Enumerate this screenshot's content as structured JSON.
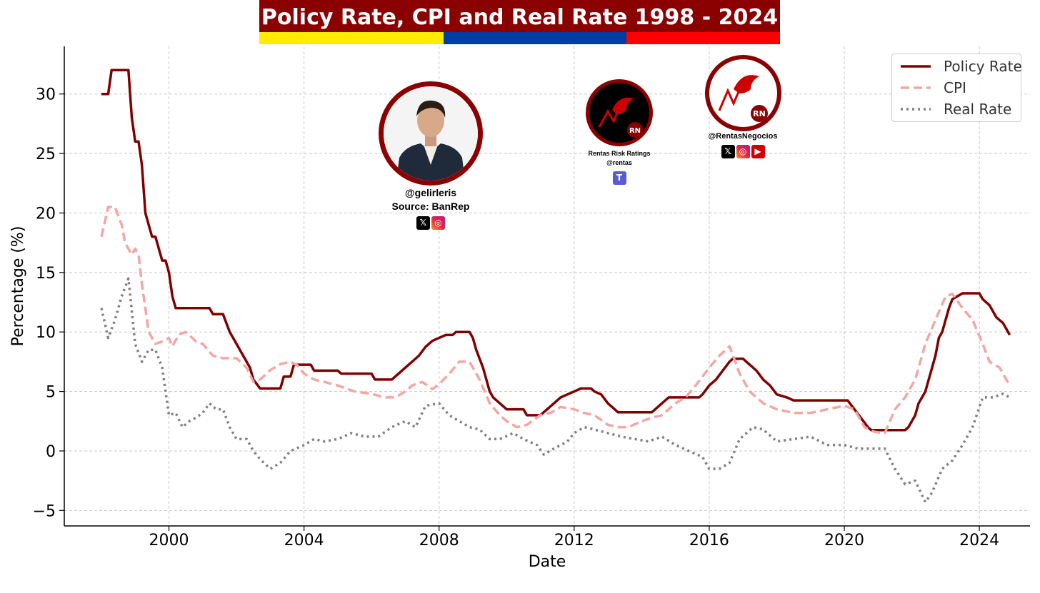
{
  "banner": {
    "title": "Policy Rate, CPI and Real Rate 1998 - 2024",
    "colors": {
      "title_bg": "#8b0000",
      "yellow": "#ffec00",
      "blue": "#003da5",
      "red": "#ff0000"
    }
  },
  "profiles": {
    "main": {
      "handle": "@gelirleris",
      "source": "Source: BanRep",
      "icons": [
        "x-icon",
        "instagram-icon"
      ]
    },
    "ratings": {
      "name": "Rentas Risk Ratings",
      "handle": "@rentas",
      "icons": [
        "t-icon"
      ],
      "logo_text": "RN"
    },
    "business": {
      "handle": "@RentasNegocios",
      "icons": [
        "x-icon",
        "instagram-icon",
        "youtube-icon"
      ],
      "logo_text": "RN"
    }
  },
  "chart_data": {
    "type": "line",
    "title": "",
    "xlabel": "Date",
    "ylabel": "Percentage (%)",
    "xlim": [
      1996.9,
      2025.5
    ],
    "ylim": [
      -6.3,
      34
    ],
    "xticks": [
      2000,
      2004,
      2008,
      2012,
      2016,
      2020,
      2024
    ],
    "yticks": [
      -5,
      0,
      5,
      10,
      15,
      20,
      25,
      30
    ],
    "ytick_labels": [
      "−5",
      "0",
      "5",
      "10",
      "15",
      "20",
      "25",
      "30"
    ],
    "grid": true,
    "legend_position": "top-right",
    "series": [
      {
        "name": "Policy Rate",
        "color": "#800000",
        "style": "solid",
        "points": [
          [
            1998.0,
            30
          ],
          [
            1998.2,
            30
          ],
          [
            1998.3,
            32
          ],
          [
            1998.8,
            32
          ],
          [
            1998.9,
            28
          ],
          [
            1999.0,
            26
          ],
          [
            1999.1,
            26
          ],
          [
            1999.2,
            24
          ],
          [
            1999.3,
            20
          ],
          [
            1999.5,
            18
          ],
          [
            1999.6,
            18
          ],
          [
            1999.8,
            16
          ],
          [
            1999.9,
            16
          ],
          [
            2000.0,
            15
          ],
          [
            2000.1,
            13
          ],
          [
            2000.2,
            12
          ],
          [
            2001.2,
            12
          ],
          [
            2001.3,
            11.5
          ],
          [
            2001.6,
            11.5
          ],
          [
            2001.8,
            10
          ],
          [
            2002.0,
            9
          ],
          [
            2002.2,
            8
          ],
          [
            2002.4,
            7
          ],
          [
            2002.5,
            6
          ],
          [
            2002.7,
            5.25
          ],
          [
            2003.3,
            5.25
          ],
          [
            2003.4,
            6.25
          ],
          [
            2003.6,
            6.25
          ],
          [
            2003.7,
            7.25
          ],
          [
            2004.2,
            7.25
          ],
          [
            2004.3,
            6.75
          ],
          [
            2005.0,
            6.75
          ],
          [
            2005.1,
            6.5
          ],
          [
            2006.0,
            6.5
          ],
          [
            2006.1,
            6.0
          ],
          [
            2006.6,
            6.0
          ],
          [
            2006.8,
            6.5
          ],
          [
            2007.0,
            7.0
          ],
          [
            2007.2,
            7.5
          ],
          [
            2007.4,
            8.0
          ],
          [
            2007.6,
            8.75
          ],
          [
            2007.8,
            9.25
          ],
          [
            2008.0,
            9.5
          ],
          [
            2008.2,
            9.75
          ],
          [
            2008.4,
            9.75
          ],
          [
            2008.5,
            10.0
          ],
          [
            2008.9,
            10.0
          ],
          [
            2009.0,
            9.5
          ],
          [
            2009.1,
            8.5
          ],
          [
            2009.3,
            7.0
          ],
          [
            2009.4,
            6.0
          ],
          [
            2009.5,
            5.0
          ],
          [
            2009.6,
            4.5
          ],
          [
            2009.8,
            4.0
          ],
          [
            2010.0,
            3.5
          ],
          [
            2010.5,
            3.5
          ],
          [
            2010.6,
            3.0
          ],
          [
            2011.0,
            3.0
          ],
          [
            2011.2,
            3.5
          ],
          [
            2011.4,
            4.0
          ],
          [
            2011.6,
            4.5
          ],
          [
            2011.8,
            4.75
          ],
          [
            2012.0,
            5.0
          ],
          [
            2012.2,
            5.25
          ],
          [
            2012.5,
            5.25
          ],
          [
            2012.6,
            5.0
          ],
          [
            2012.8,
            4.75
          ],
          [
            2013.0,
            4.0
          ],
          [
            2013.2,
            3.5
          ],
          [
            2013.3,
            3.25
          ],
          [
            2014.3,
            3.25
          ],
          [
            2014.4,
            3.5
          ],
          [
            2014.6,
            4.0
          ],
          [
            2014.8,
            4.5
          ],
          [
            2015.7,
            4.5
          ],
          [
            2015.8,
            4.75
          ],
          [
            2016.0,
            5.5
          ],
          [
            2016.2,
            6.0
          ],
          [
            2016.4,
            6.75
          ],
          [
            2016.6,
            7.5
          ],
          [
            2016.7,
            7.75
          ],
          [
            2017.0,
            7.75
          ],
          [
            2017.2,
            7.25
          ],
          [
            2017.4,
            6.75
          ],
          [
            2017.6,
            6.0
          ],
          [
            2017.8,
            5.5
          ],
          [
            2018.0,
            4.75
          ],
          [
            2018.3,
            4.5
          ],
          [
            2018.5,
            4.25
          ],
          [
            2020.1,
            4.25
          ],
          [
            2020.3,
            3.5
          ],
          [
            2020.5,
            2.75
          ],
          [
            2020.7,
            2.0
          ],
          [
            2020.8,
            1.75
          ],
          [
            2021.8,
            1.75
          ],
          [
            2021.9,
            2.0
          ],
          [
            2022.1,
            3.0
          ],
          [
            2022.2,
            4.0
          ],
          [
            2022.4,
            5.0
          ],
          [
            2022.5,
            6.0
          ],
          [
            2022.7,
            8.0
          ],
          [
            2022.8,
            9.5
          ],
          [
            2022.9,
            10.0
          ],
          [
            2023.0,
            11.0
          ],
          [
            2023.1,
            12.0
          ],
          [
            2023.2,
            12.75
          ],
          [
            2023.5,
            13.25
          ],
          [
            2024.0,
            13.25
          ],
          [
            2024.1,
            12.75
          ],
          [
            2024.3,
            12.25
          ],
          [
            2024.5,
            11.25
          ],
          [
            2024.7,
            10.75
          ],
          [
            2024.8,
            10.25
          ],
          [
            2024.9,
            9.75
          ]
        ]
      },
      {
        "name": "CPI",
        "color": "#f4a6a2",
        "style": "dashed",
        "points": [
          [
            1998.0,
            18
          ],
          [
            1998.2,
            20.5
          ],
          [
            1998.4,
            20.5
          ],
          [
            1998.6,
            19
          ],
          [
            1998.7,
            17.5
          ],
          [
            1998.9,
            16.5
          ],
          [
            1999.0,
            17
          ],
          [
            1999.1,
            16.5
          ],
          [
            1999.2,
            14
          ],
          [
            1999.3,
            12
          ],
          [
            1999.4,
            10
          ],
          [
            1999.6,
            9
          ],
          [
            1999.8,
            9.2
          ],
          [
            2000.0,
            9.5
          ],
          [
            2000.1,
            8.8
          ],
          [
            2000.3,
            9.8
          ],
          [
            2000.5,
            10
          ],
          [
            2000.8,
            9.2
          ],
          [
            2001.0,
            9.0
          ],
          [
            2001.3,
            8.0
          ],
          [
            2001.6,
            7.8
          ],
          [
            2002.0,
            7.8
          ],
          [
            2002.3,
            7.0
          ],
          [
            2002.5,
            5.8
          ],
          [
            2002.7,
            6.0
          ],
          [
            2003.0,
            6.8
          ],
          [
            2003.3,
            7.3
          ],
          [
            2003.6,
            7.5
          ],
          [
            2003.8,
            7.2
          ],
          [
            2004.0,
            6.5
          ],
          [
            2004.3,
            6.0
          ],
          [
            2004.6,
            5.8
          ],
          [
            2005.0,
            5.5
          ],
          [
            2005.5,
            5.0
          ],
          [
            2006.0,
            4.8
          ],
          [
            2006.4,
            4.5
          ],
          [
            2006.7,
            4.5
          ],
          [
            2007.0,
            5.0
          ],
          [
            2007.2,
            5.5
          ],
          [
            2007.5,
            5.8
          ],
          [
            2007.8,
            5.2
          ],
          [
            2008.0,
            5.6
          ],
          [
            2008.3,
            6.5
          ],
          [
            2008.6,
            7.5
          ],
          [
            2008.9,
            7.5
          ],
          [
            2009.2,
            6.0
          ],
          [
            2009.5,
            4.0
          ],
          [
            2009.8,
            3.0
          ],
          [
            2010.0,
            2.5
          ],
          [
            2010.3,
            2.0
          ],
          [
            2010.6,
            2.2
          ],
          [
            2011.0,
            3.0
          ],
          [
            2011.3,
            3.2
          ],
          [
            2011.6,
            3.7
          ],
          [
            2012.0,
            3.5
          ],
          [
            2012.3,
            3.2
          ],
          [
            2012.6,
            3.0
          ],
          [
            2013.0,
            2.2
          ],
          [
            2013.3,
            2.0
          ],
          [
            2013.6,
            2.0
          ],
          [
            2014.0,
            2.5
          ],
          [
            2014.3,
            2.8
          ],
          [
            2014.6,
            3.0
          ],
          [
            2015.0,
            4.0
          ],
          [
            2015.3,
            4.5
          ],
          [
            2015.6,
            5.5
          ],
          [
            2016.0,
            7.0
          ],
          [
            2016.3,
            8.0
          ],
          [
            2016.6,
            8.8
          ],
          [
            2016.9,
            6.5
          ],
          [
            2017.2,
            5.0
          ],
          [
            2017.6,
            4.0
          ],
          [
            2018.0,
            3.5
          ],
          [
            2018.5,
            3.2
          ],
          [
            2019.0,
            3.2
          ],
          [
            2019.5,
            3.5
          ],
          [
            2020.0,
            3.8
          ],
          [
            2020.3,
            3.5
          ],
          [
            2020.6,
            2.0
          ],
          [
            2020.9,
            1.6
          ],
          [
            2021.2,
            1.5
          ],
          [
            2021.5,
            3.5
          ],
          [
            2021.8,
            4.5
          ],
          [
            2022.1,
            6.0
          ],
          [
            2022.4,
            9.0
          ],
          [
            2022.7,
            11.0
          ],
          [
            2023.0,
            13.0
          ],
          [
            2023.2,
            13.2
          ],
          [
            2023.5,
            12.0
          ],
          [
            2023.8,
            11.0
          ],
          [
            2024.1,
            9.0
          ],
          [
            2024.3,
            7.5
          ],
          [
            2024.6,
            7.0
          ],
          [
            2024.9,
            5.5
          ]
        ]
      },
      {
        "name": "Real Rate",
        "color": "#808080",
        "style": "dotted",
        "points": [
          [
            1998.0,
            12
          ],
          [
            1998.2,
            9.5
          ],
          [
            1998.4,
            11
          ],
          [
            1998.6,
            13
          ],
          [
            1998.8,
            14.5
          ],
          [
            1999.0,
            9
          ],
          [
            1999.2,
            7.5
          ],
          [
            1999.4,
            8.5
          ],
          [
            1999.6,
            8.5
          ],
          [
            1999.8,
            7.0
          ],
          [
            2000.0,
            3.0
          ],
          [
            2000.2,
            3.2
          ],
          [
            2000.4,
            2.0
          ],
          [
            2000.6,
            2.5
          ],
          [
            2000.8,
            2.8
          ],
          [
            2001.0,
            3.2
          ],
          [
            2001.2,
            4.0
          ],
          [
            2001.4,
            3.5
          ],
          [
            2001.6,
            3.5
          ],
          [
            2001.8,
            2.0
          ],
          [
            2002.0,
            1.0
          ],
          [
            2002.3,
            1.0
          ],
          [
            2002.5,
            0.0
          ],
          [
            2002.7,
            -0.7
          ],
          [
            2003.0,
            -1.5
          ],
          [
            2003.3,
            -1.0
          ],
          [
            2003.6,
            0.0
          ],
          [
            2004.0,
            0.5
          ],
          [
            2004.3,
            1.0
          ],
          [
            2004.6,
            0.8
          ],
          [
            2005.0,
            1.0
          ],
          [
            2005.4,
            1.5
          ],
          [
            2005.8,
            1.2
          ],
          [
            2006.2,
            1.2
          ],
          [
            2006.6,
            2.0
          ],
          [
            2007.0,
            2.5
          ],
          [
            2007.3,
            2.0
          ],
          [
            2007.6,
            3.8
          ],
          [
            2008.0,
            4.0
          ],
          [
            2008.3,
            3.0
          ],
          [
            2008.6,
            2.5
          ],
          [
            2008.9,
            2.0
          ],
          [
            2009.2,
            1.8
          ],
          [
            2009.5,
            1.0
          ],
          [
            2009.8,
            1.0
          ],
          [
            2010.2,
            1.5
          ],
          [
            2010.5,
            1.0
          ],
          [
            2010.9,
            0.5
          ],
          [
            2011.1,
            -0.3
          ],
          [
            2011.4,
            0.2
          ],
          [
            2011.8,
            0.8
          ],
          [
            2012.0,
            1.5
          ],
          [
            2012.3,
            2.0
          ],
          [
            2012.6,
            1.8
          ],
          [
            2013.0,
            1.5
          ],
          [
            2013.4,
            1.2
          ],
          [
            2013.8,
            1.0
          ],
          [
            2014.2,
            0.8
          ],
          [
            2014.6,
            1.2
          ],
          [
            2015.0,
            0.5
          ],
          [
            2015.4,
            0.0
          ],
          [
            2015.8,
            -0.5
          ],
          [
            2016.0,
            -1.5
          ],
          [
            2016.3,
            -1.5
          ],
          [
            2016.6,
            -1.0
          ],
          [
            2016.9,
            1.0
          ],
          [
            2017.3,
            2.0
          ],
          [
            2017.6,
            1.8
          ],
          [
            2018.0,
            0.8
          ],
          [
            2018.5,
            1.0
          ],
          [
            2019.0,
            1.2
          ],
          [
            2019.5,
            0.5
          ],
          [
            2020.0,
            0.5
          ],
          [
            2020.4,
            0.2
          ],
          [
            2020.8,
            0.2
          ],
          [
            2021.2,
            0.2
          ],
          [
            2021.5,
            -1.5
          ],
          [
            2021.8,
            -2.8
          ],
          [
            2022.1,
            -2.5
          ],
          [
            2022.4,
            -4.3
          ],
          [
            2022.6,
            -3.5
          ],
          [
            2022.9,
            -1.5
          ],
          [
            2023.2,
            -0.8
          ],
          [
            2023.5,
            0.5
          ],
          [
            2023.8,
            2.0
          ],
          [
            2024.1,
            4.5
          ],
          [
            2024.4,
            4.5
          ],
          [
            2024.7,
            4.8
          ],
          [
            2024.9,
            4.5
          ]
        ]
      }
    ]
  }
}
